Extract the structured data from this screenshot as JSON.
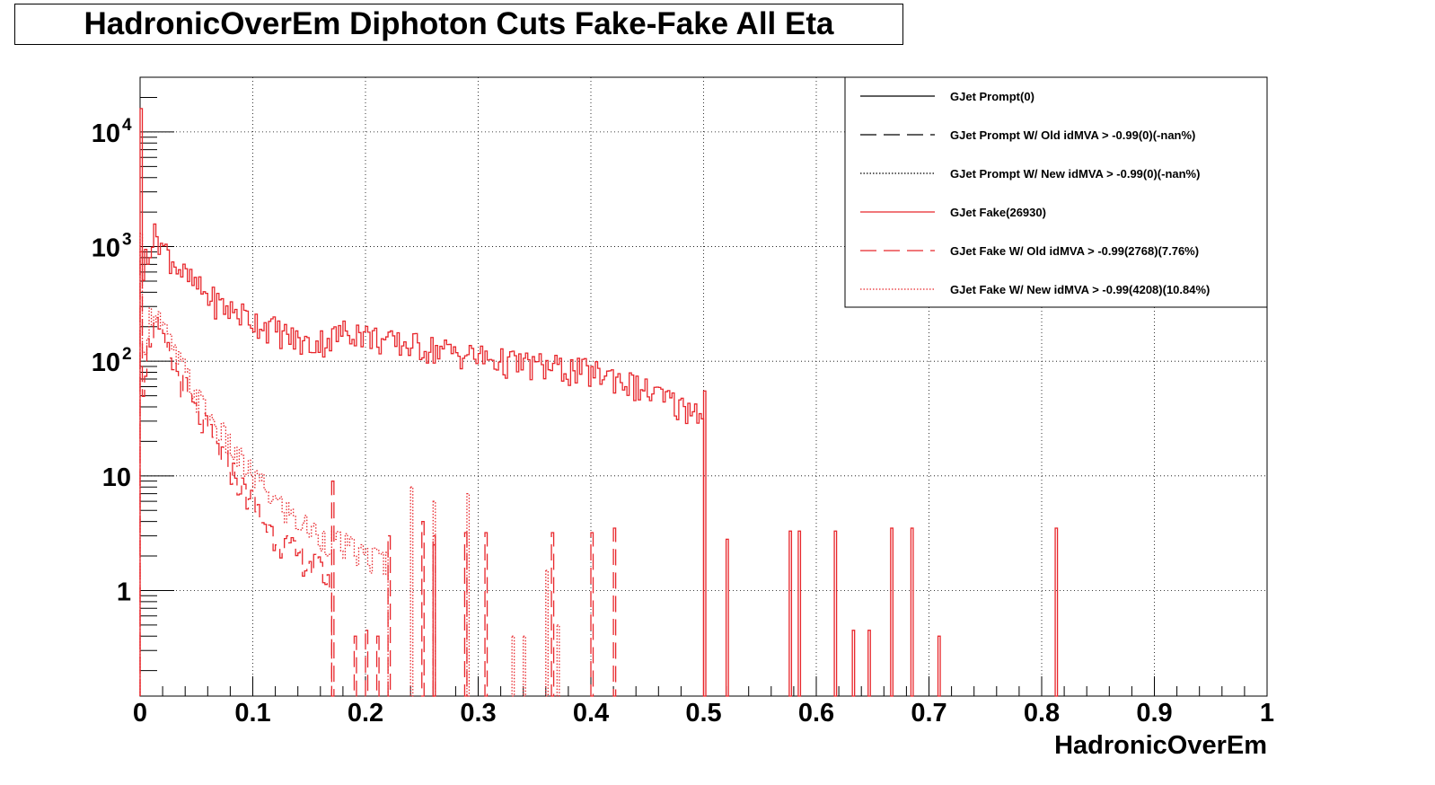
{
  "colors": {
    "prompt": "#000000",
    "fake": "#e8262b",
    "grid": "#000000"
  },
  "chart_data": {
    "type": "histogram",
    "title": "HadronicOverEm Diphoton Cuts Fake-Fake All Eta",
    "xlabel": "HadronicOverEm",
    "ylabel": "",
    "xlim": [
      0,
      1
    ],
    "ylim": [
      0.12,
      30000
    ],
    "yscale": "log",
    "grid": true,
    "legend_position": "top-right",
    "x_tick_labels": [
      "0",
      "0.1",
      "0.2",
      "0.3",
      "0.4",
      "0.5",
      "0.6",
      "0.7",
      "0.8",
      "0.9",
      "1"
    ],
    "y_tick_labels": [
      {
        "value": 1,
        "label": "1"
      },
      {
        "value": 10,
        "label": "10"
      },
      {
        "value": 100,
        "label": "10",
        "exp": "2"
      },
      {
        "value": 1000,
        "label": "10",
        "exp": "3"
      },
      {
        "value": 10000,
        "label": "10",
        "exp": "4"
      }
    ],
    "bin_width": 0.002,
    "series": [
      {
        "name": "GJet Prompt(0)",
        "color": "prompt",
        "style": "solid",
        "entries": []
      },
      {
        "name": "GJet Prompt W/ Old idMVA > -0.99(0)(-nan%)",
        "color": "prompt",
        "style": "dashed",
        "entries": []
      },
      {
        "name": "GJet Prompt W/ New idMVA > -0.99(0)(-nan%)",
        "color": "prompt",
        "style": "dotted",
        "entries": []
      },
      {
        "name": "GJet Fake(26930)",
        "color": "fake",
        "style": "solid",
        "shape": [
          [
            0,
            16000
          ],
          [
            0.002,
            200
          ],
          [
            0.004,
            900
          ],
          [
            0.008,
            1000
          ],
          [
            0.012,
            1200
          ],
          [
            0.016,
            1300
          ],
          [
            0.02,
            1000
          ],
          [
            0.03,
            750
          ],
          [
            0.04,
            550
          ],
          [
            0.05,
            450
          ],
          [
            0.06,
            370
          ],
          [
            0.07,
            320
          ],
          [
            0.08,
            280
          ],
          [
            0.09,
            260
          ],
          [
            0.1,
            230
          ],
          [
            0.11,
            210
          ],
          [
            0.12,
            190
          ],
          [
            0.13,
            170
          ],
          [
            0.14,
            150
          ],
          [
            0.15,
            140
          ],
          [
            0.16,
            150
          ],
          [
            0.17,
            160
          ],
          [
            0.18,
            180
          ],
          [
            0.19,
            190
          ],
          [
            0.2,
            170
          ],
          [
            0.21,
            160
          ],
          [
            0.22,
            145
          ],
          [
            0.24,
            140
          ],
          [
            0.26,
            130
          ],
          [
            0.28,
            120
          ],
          [
            0.3,
            110
          ],
          [
            0.32,
            100
          ],
          [
            0.34,
            95
          ],
          [
            0.36,
            90
          ],
          [
            0.38,
            85
          ],
          [
            0.4,
            80
          ],
          [
            0.42,
            75
          ],
          [
            0.44,
            60
          ],
          [
            0.46,
            50
          ],
          [
            0.48,
            40
          ],
          [
            0.5,
            38
          ]
        ],
        "spikes": [
          [
            0.5,
            55
          ],
          [
            0.52,
            2.8
          ],
          [
            0.576,
            3.3
          ],
          [
            0.584,
            3.3
          ],
          [
            0.616,
            3.3
          ],
          [
            0.632,
            0.45
          ],
          [
            0.646,
            0.45
          ],
          [
            0.666,
            3.5
          ],
          [
            0.684,
            3.5
          ],
          [
            0.708,
            0.4
          ],
          [
            0.812,
            3.5
          ]
        ]
      },
      {
        "name": "GJet Fake W/ Old idMVA > -0.99(2768)(7.76%)",
        "color": "fake",
        "style": "dashed",
        "shape": [
          [
            0,
            900
          ],
          [
            0.002,
            50
          ],
          [
            0.006,
            120
          ],
          [
            0.01,
            180
          ],
          [
            0.014,
            200
          ],
          [
            0.02,
            150
          ],
          [
            0.03,
            90
          ],
          [
            0.04,
            60
          ],
          [
            0.05,
            35
          ],
          [
            0.06,
            25
          ],
          [
            0.07,
            17
          ],
          [
            0.08,
            12
          ],
          [
            0.09,
            8
          ],
          [
            0.1,
            6
          ],
          [
            0.11,
            4
          ],
          [
            0.12,
            3
          ],
          [
            0.13,
            2.5
          ],
          [
            0.14,
            2
          ],
          [
            0.15,
            1.8
          ],
          [
            0.16,
            1.5
          ],
          [
            0.17,
            1.2
          ]
        ],
        "spikes": [
          [
            0.17,
            9
          ],
          [
            0.19,
            0.4
          ],
          [
            0.2,
            0.45
          ],
          [
            0.21,
            0.4
          ],
          [
            0.22,
            3
          ],
          [
            0.25,
            4
          ],
          [
            0.26,
            3
          ],
          [
            0.26,
            2.5
          ],
          [
            0.288,
            3.2
          ],
          [
            0.306,
            3.2
          ],
          [
            0.365,
            3.2
          ],
          [
            0.4,
            3.2
          ],
          [
            0.42,
            3.5
          ]
        ]
      },
      {
        "name": "GJet Fake W/ New idMVA > -0.99(4208)(10.84%)",
        "color": "fake",
        "style": "dotted",
        "shape": [
          [
            0,
            1300
          ],
          [
            0.002,
            80
          ],
          [
            0.006,
            200
          ],
          [
            0.01,
            260
          ],
          [
            0.014,
            300
          ],
          [
            0.02,
            200
          ],
          [
            0.03,
            120
          ],
          [
            0.04,
            80
          ],
          [
            0.05,
            50
          ],
          [
            0.06,
            35
          ],
          [
            0.07,
            25
          ],
          [
            0.08,
            18
          ],
          [
            0.09,
            13
          ],
          [
            0.1,
            10
          ],
          [
            0.11,
            8
          ],
          [
            0.12,
            6
          ],
          [
            0.13,
            5
          ],
          [
            0.14,
            4
          ],
          [
            0.15,
            3.5
          ],
          [
            0.16,
            3
          ],
          [
            0.18,
            2.5
          ],
          [
            0.2,
            2
          ],
          [
            0.22,
            1.8
          ]
        ],
        "spikes": [
          [
            0.24,
            8
          ],
          [
            0.26,
            6
          ],
          [
            0.29,
            7
          ],
          [
            0.33,
            0.4
          ],
          [
            0.34,
            0.4
          ],
          [
            0.36,
            1.5
          ],
          [
            0.37,
            0.5
          ]
        ]
      }
    ]
  }
}
